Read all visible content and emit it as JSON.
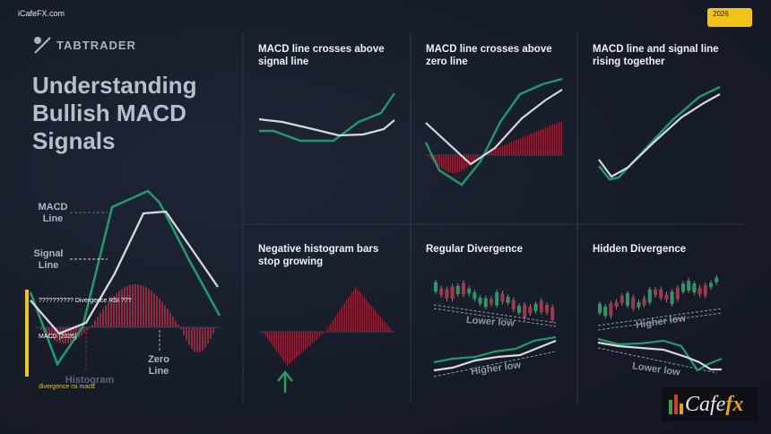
{
  "watermark": "iCafeFX.com",
  "year_badge": "2026",
  "brand": {
    "name": "TABTRADER"
  },
  "main_title": "Understanding Bullish MACD Signals",
  "left_chart": {
    "macd_label": [
      "MACD",
      "Line"
    ],
    "signal_label": [
      "Signal",
      "Line"
    ],
    "zero_label": [
      "Zero",
      "Line"
    ],
    "histogram_label": "Histogram",
    "overlay_divergence": "?????????? Divergence RSI ???",
    "overlay_macd": "MACD [2026]",
    "overlay_footer": "divergence rsi macd"
  },
  "cells": [
    {
      "title_lines": [
        "MACD line crosses above",
        "signal line"
      ]
    },
    {
      "title_lines": [
        "MACD line crosses above",
        "zero line"
      ]
    },
    {
      "title_lines": [
        "MACD line and signal line",
        "rising together"
      ]
    },
    {
      "title_lines": [
        "Negative histogram bars",
        "stop growing"
      ]
    },
    {
      "title": "Regular Divergence",
      "labels": [
        "Lower low",
        "Higher low"
      ]
    },
    {
      "title": "Hidden Divergence",
      "labels": [
        "Higher low",
        "Lower low"
      ]
    }
  ],
  "colors": {
    "macd": "#1f9a6a",
    "signal": "#d6d8de",
    "histogram": "#8e2a3f",
    "accent": "#f0c419",
    "bull_candle": "#2a9a63",
    "bear_candle": "#a3374c"
  },
  "cafefx": {
    "prefix": "Cafe",
    "suffix": "fx"
  }
}
